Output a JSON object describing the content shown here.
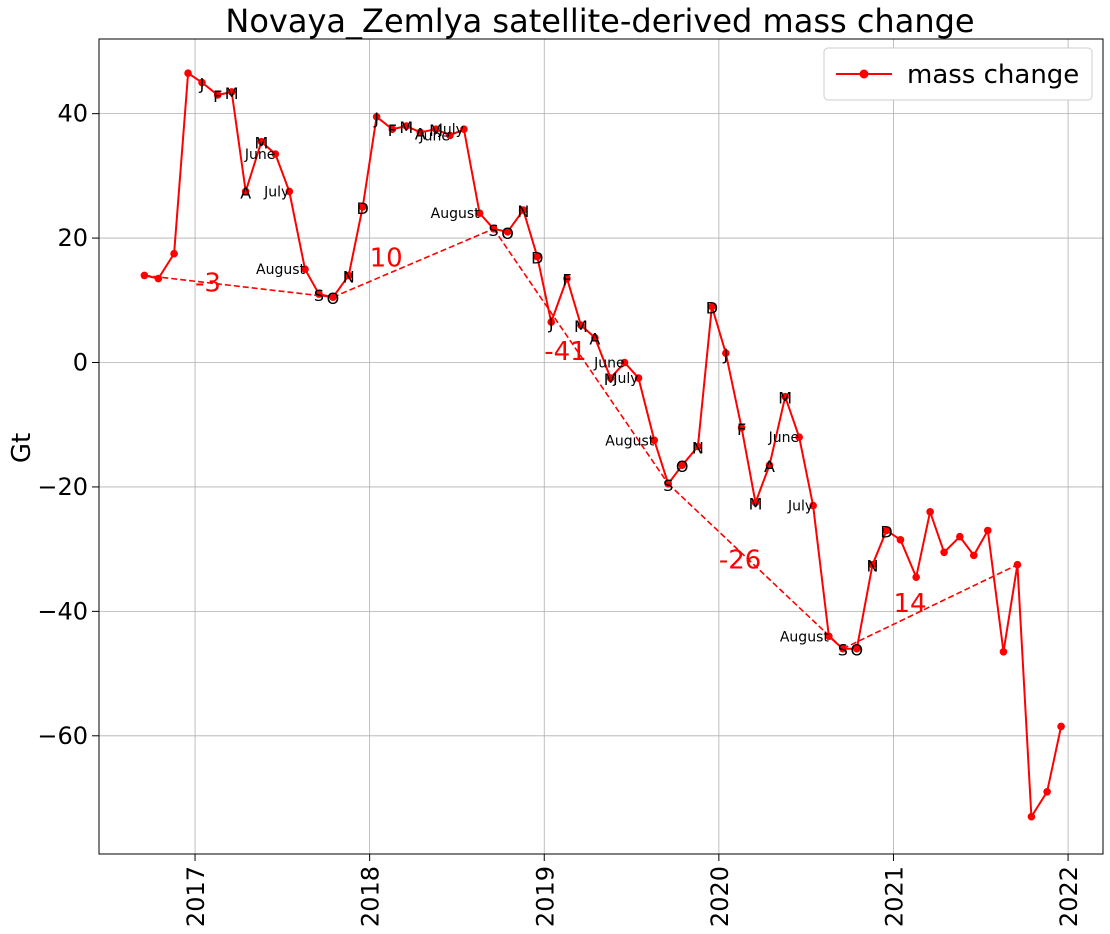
{
  "chart_data": {
    "type": "line",
    "title": "Novaya_Zemlya satellite-derived mass change",
    "ylabel": "Gt",
    "xlabel": "",
    "xlim": [
      2016.45,
      2022.2
    ],
    "ylim": [
      -79,
      52
    ],
    "x_ticks": [
      2017,
      2018,
      2019,
      2020,
      2021,
      2022
    ],
    "x_tick_labels": [
      "2017",
      "2018",
      "2019",
      "2020",
      "2021",
      "2022"
    ],
    "y_ticks": [
      -60,
      -40,
      -20,
      0,
      20,
      40
    ],
    "y_tick_labels": [
      "−60",
      "−40",
      "−20",
      "0",
      "20",
      "40"
    ],
    "grid": true,
    "legend": {
      "position": "upper right"
    },
    "series": [
      {
        "name": "mass change",
        "color": "#ff0000",
        "marker": "circle",
        "x": [
          2016.71,
          2016.79,
          2016.88,
          2016.96,
          2017.04,
          2017.13,
          2017.21,
          2017.29,
          2017.38,
          2017.46,
          2017.54,
          2017.63,
          2017.71,
          2017.79,
          2017.88,
          2017.96,
          2018.04,
          2018.13,
          2018.21,
          2018.29,
          2018.38,
          2018.46,
          2018.54,
          2018.63,
          2018.71,
          2018.79,
          2018.88,
          2018.96,
          2019.04,
          2019.13,
          2019.21,
          2019.29,
          2019.38,
          2019.46,
          2019.54,
          2019.63,
          2019.71,
          2019.79,
          2019.88,
          2019.96,
          2020.04,
          2020.13,
          2020.21,
          2020.29,
          2020.38,
          2020.46,
          2020.54,
          2020.63,
          2020.71,
          2020.79,
          2020.88,
          2020.96,
          2021.04,
          2021.13,
          2021.21,
          2021.29,
          2021.38,
          2021.46,
          2021.54,
          2021.63,
          2021.71,
          2021.79,
          2021.88,
          2021.96
        ],
        "y": [
          14,
          13.5,
          17.5,
          46.5,
          45,
          43,
          43.5,
          27.5,
          35.5,
          33.5,
          27.5,
          15,
          11,
          10.5,
          14,
          25,
          39.5,
          37.5,
          38,
          37,
          37.5,
          36.5,
          37.5,
          24,
          21.5,
          21,
          24.5,
          17,
          6.5,
          13.5,
          6,
          4,
          -2.5,
          0,
          -2.5,
          -12.5,
          -19.5,
          -16.5,
          -13.5,
          9,
          1.5,
          -10.5,
          -22.5,
          -16.5,
          -5.5,
          -12,
          -23,
          -44,
          -46,
          -46,
          -32.5,
          -27,
          -28.5,
          -34.5,
          -24,
          -30.5,
          -28,
          -31,
          -27,
          -46.5,
          -32.5,
          -73,
          -69,
          -58.5
        ],
        "annotations": [
          {
            "text": "J",
            "x": 2017.04,
            "y": 45,
            "size": "large"
          },
          {
            "text": "F",
            "x": 2017.13,
            "y": 43,
            "size": "large"
          },
          {
            "text": "M",
            "x": 2017.21,
            "y": 43.5,
            "size": "large"
          },
          {
            "text": "A",
            "x": 2017.29,
            "y": 27.5,
            "size": "large"
          },
          {
            "text": "M",
            "x": 2017.38,
            "y": 35.5,
            "size": "large"
          },
          {
            "text": "June",
            "x": 2017.46,
            "y": 33.5,
            "size": "small"
          },
          {
            "text": "July",
            "x": 2017.54,
            "y": 27.5,
            "size": "small"
          },
          {
            "text": "August",
            "x": 2017.63,
            "y": 15,
            "size": "small"
          },
          {
            "text": "S",
            "x": 2017.71,
            "y": 11,
            "size": "large"
          },
          {
            "text": "O",
            "x": 2017.79,
            "y": 10.5,
            "size": "large"
          },
          {
            "text": "N",
            "x": 2017.88,
            "y": 14,
            "size": "large"
          },
          {
            "text": "D",
            "x": 2017.96,
            "y": 25,
            "size": "large"
          },
          {
            "text": "J",
            "x": 2018.04,
            "y": 39.5,
            "size": "large"
          },
          {
            "text": "F",
            "x": 2018.13,
            "y": 37.5,
            "size": "large"
          },
          {
            "text": "M",
            "x": 2018.21,
            "y": 38,
            "size": "large"
          },
          {
            "text": "A",
            "x": 2018.29,
            "y": 37,
            "size": "large"
          },
          {
            "text": "M",
            "x": 2018.38,
            "y": 37.5,
            "size": "large"
          },
          {
            "text": "June",
            "x": 2018.46,
            "y": 36.5,
            "size": "small"
          },
          {
            "text": "July",
            "x": 2018.54,
            "y": 37.5,
            "size": "small"
          },
          {
            "text": "August",
            "x": 2018.63,
            "y": 24,
            "size": "small"
          },
          {
            "text": "S",
            "x": 2018.71,
            "y": 21.5,
            "size": "large"
          },
          {
            "text": "O",
            "x": 2018.79,
            "y": 21,
            "size": "large"
          },
          {
            "text": "N",
            "x": 2018.88,
            "y": 24.5,
            "size": "large"
          },
          {
            "text": "D",
            "x": 2018.96,
            "y": 17,
            "size": "large"
          },
          {
            "text": "J",
            "x": 2019.04,
            "y": 6.5,
            "size": "large"
          },
          {
            "text": "F",
            "x": 2019.13,
            "y": 13.5,
            "size": "large"
          },
          {
            "text": "M",
            "x": 2019.21,
            "y": 6,
            "size": "large"
          },
          {
            "text": "A",
            "x": 2019.29,
            "y": 4,
            "size": "large"
          },
          {
            "text": "M",
            "x": 2019.38,
            "y": -2.5,
            "size": "large"
          },
          {
            "text": "June",
            "x": 2019.46,
            "y": 0,
            "size": "small"
          },
          {
            "text": "July",
            "x": 2019.54,
            "y": -2.5,
            "size": "small"
          },
          {
            "text": "August",
            "x": 2019.63,
            "y": -12.5,
            "size": "small"
          },
          {
            "text": "S",
            "x": 2019.71,
            "y": -19.5,
            "size": "large"
          },
          {
            "text": "O",
            "x": 2019.79,
            "y": -16.5,
            "size": "large"
          },
          {
            "text": "N",
            "x": 2019.88,
            "y": -13.5,
            "size": "large"
          },
          {
            "text": "D",
            "x": 2019.96,
            "y": 9,
            "size": "large"
          },
          {
            "text": "J",
            "x": 2020.04,
            "y": 1.5,
            "size": "large"
          },
          {
            "text": "F",
            "x": 2020.13,
            "y": -10.5,
            "size": "large"
          },
          {
            "text": "M",
            "x": 2020.21,
            "y": -22.5,
            "size": "large"
          },
          {
            "text": "A",
            "x": 2020.29,
            "y": -16.5,
            "size": "large"
          },
          {
            "text": "M",
            "x": 2020.38,
            "y": -5.5,
            "size": "large"
          },
          {
            "text": "June",
            "x": 2020.46,
            "y": -12,
            "size": "small"
          },
          {
            "text": "July",
            "x": 2020.54,
            "y": -23,
            "size": "small"
          },
          {
            "text": "August",
            "x": 2020.63,
            "y": -44,
            "size": "small"
          },
          {
            "text": "S",
            "x": 2020.71,
            "y": -46,
            "size": "large"
          },
          {
            "text": "O",
            "x": 2020.79,
            "y": -46,
            "size": "large"
          },
          {
            "text": "N",
            "x": 2020.88,
            "y": -32.5,
            "size": "large"
          },
          {
            "text": "D",
            "x": 2020.96,
            "y": -27,
            "size": "large"
          }
        ]
      }
    ],
    "trend_segments": [
      {
        "x": [
          2016.71,
          2017.79
        ],
        "y": [
          14,
          10.5
        ],
        "label": "-3",
        "label_x": 2017.0,
        "label_y": 13
      },
      {
        "x": [
          2017.79,
          2018.71
        ],
        "y": [
          10.5,
          21.5
        ],
        "label": "10",
        "label_x": 2018.0,
        "label_y": 17
      },
      {
        "x": [
          2018.71,
          2019.71
        ],
        "y": [
          21.5,
          -19.5
        ],
        "label": "-41",
        "label_x": 2019.0,
        "label_y": 2
      },
      {
        "x": [
          2019.71,
          2020.71
        ],
        "y": [
          -19.5,
          -46
        ],
        "label": "-26",
        "label_x": 2020.0,
        "label_y": -31.5
      },
      {
        "x": [
          2020.71,
          2021.71
        ],
        "y": [
          -46,
          -32.5
        ],
        "label": "14",
        "label_x": 2021.0,
        "label_y": -38.5
      }
    ]
  }
}
